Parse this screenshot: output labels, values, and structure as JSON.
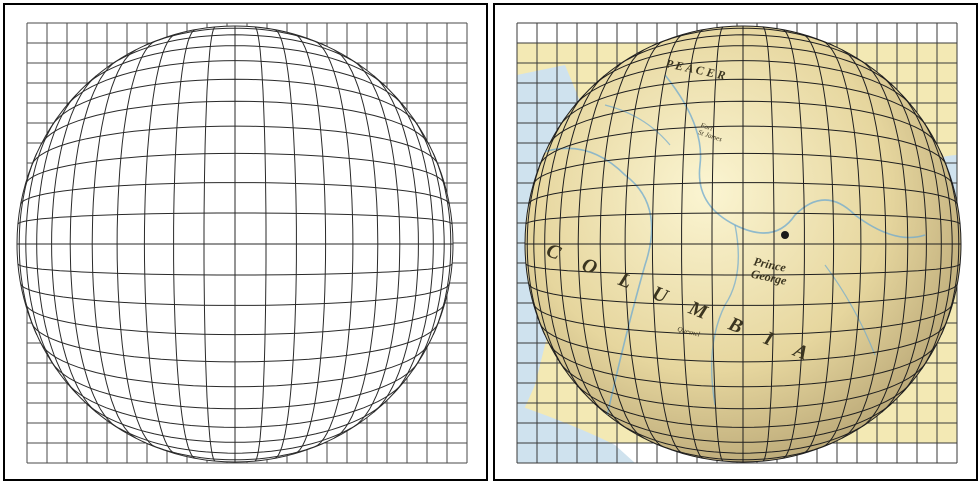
{
  "figure": {
    "panels": [
      {
        "id": "plain-grid",
        "show_map": false,
        "grid": {
          "columns": 23,
          "rows": 23,
          "line_color": "#4a4a4a"
        },
        "sphere": {
          "line_color": "#2a2a2a",
          "fill": "#ffffff",
          "meridians": 22,
          "parallels": 22
        },
        "labels": []
      },
      {
        "id": "map-sphere",
        "show_map": true,
        "grid": {
          "columns": 23,
          "rows": 23,
          "line_color": "#3a3a3a"
        },
        "sphere": {
          "line_color": "#1f1f1f",
          "fill": "#e9dcaa",
          "meridians": 22,
          "parallels": 22
        },
        "map": {
          "land_color": "#f3e9b4",
          "water_color": "#cfe2ee",
          "river_color": "#6fa9cf"
        },
        "labels": [
          {
            "id": "peace-river",
            "text": "P E A C E R",
            "size": 12,
            "italic": true,
            "bold": true
          },
          {
            "id": "fort-st-james",
            "text": "Fort\nSt James",
            "size": 7,
            "italic": true,
            "bold": false
          },
          {
            "id": "columbia",
            "text": "C O L U M B I A",
            "size": 20,
            "italic": true,
            "bold": true
          },
          {
            "id": "prince-george",
            "text": "Prince\nGeorge",
            "size": 12,
            "italic": true,
            "bold": true
          },
          {
            "id": "quesnel",
            "text": "Quesnel",
            "size": 7,
            "italic": true,
            "bold": false
          }
        ]
      }
    ]
  }
}
